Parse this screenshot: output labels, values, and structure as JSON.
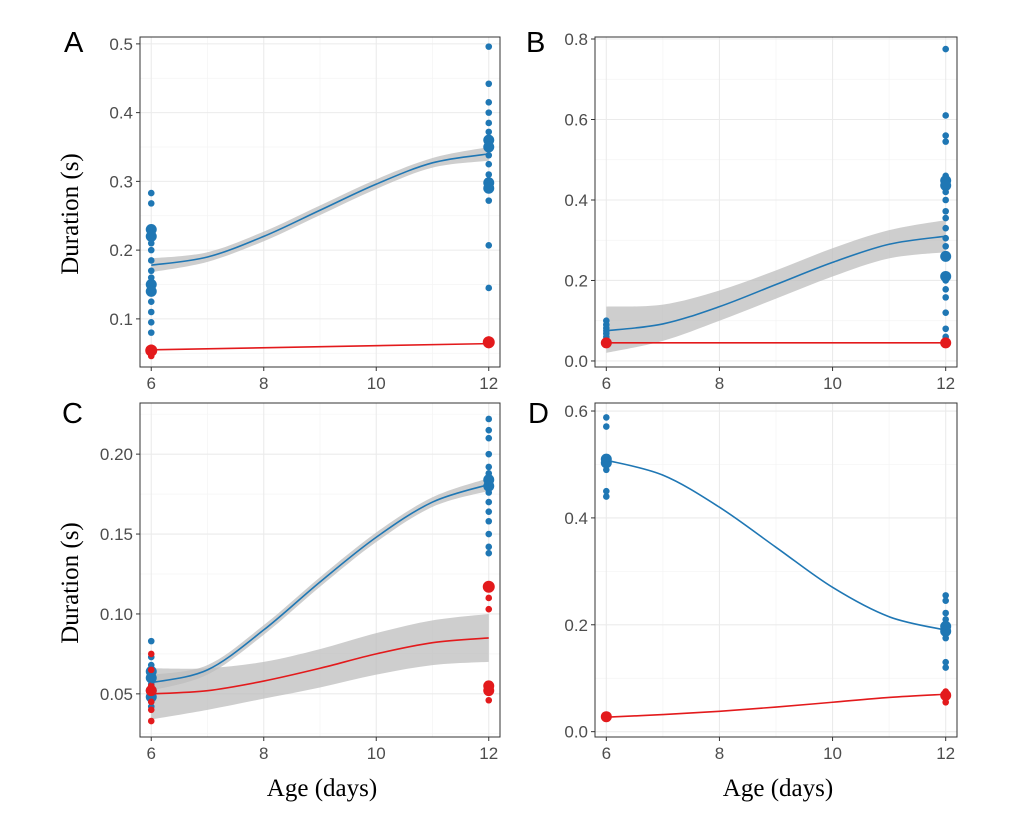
{
  "figure": {
    "y_axis_title": "Duration (s)",
    "x_axis_title": "Age (days)"
  },
  "colors": {
    "series_a": "#1f77b4",
    "series_b": "#e31a1c",
    "ribbon": "#bdbdbd"
  },
  "chart_data": [
    {
      "type": "scatter",
      "label": "A",
      "xlim": [
        5.8,
        12.2
      ],
      "ylim": [
        0.03,
        0.51
      ],
      "x_ticks": [
        6,
        8,
        10,
        12
      ],
      "y_ticks": [
        0.1,
        0.2,
        0.3,
        0.4,
        0.5
      ],
      "y_tick_labels": [
        "0.1",
        "0.2",
        "0.3",
        "0.4",
        "0.5"
      ],
      "grid": true,
      "series": [
        {
          "color": "#1f77b4",
          "points": [
            {
              "x": 6,
              "y": 0.283
            },
            {
              "x": 6,
              "y": 0.268
            },
            {
              "x": 6,
              "y": 0.23,
              "r": 5.5
            },
            {
              "x": 6,
              "y": 0.22,
              "r": 5.5
            },
            {
              "x": 6,
              "y": 0.21
            },
            {
              "x": 6,
              "y": 0.2
            },
            {
              "x": 6,
              "y": 0.185
            },
            {
              "x": 6,
              "y": 0.17
            },
            {
              "x": 6,
              "y": 0.16
            },
            {
              "x": 6,
              "y": 0.15,
              "r": 5.5
            },
            {
              "x": 6,
              "y": 0.14,
              "r": 5.5
            },
            {
              "x": 6,
              "y": 0.125
            },
            {
              "x": 6,
              "y": 0.11
            },
            {
              "x": 6,
              "y": 0.095
            },
            {
              "x": 6,
              "y": 0.08
            },
            {
              "x": 12,
              "y": 0.496
            },
            {
              "x": 12,
              "y": 0.442
            },
            {
              "x": 12,
              "y": 0.415
            },
            {
              "x": 12,
              "y": 0.4
            },
            {
              "x": 12,
              "y": 0.385
            },
            {
              "x": 12,
              "y": 0.372
            },
            {
              "x": 12,
              "y": 0.36,
              "r": 5.5
            },
            {
              "x": 12,
              "y": 0.35,
              "r": 5.5
            },
            {
              "x": 12,
              "y": 0.338
            },
            {
              "x": 12,
              "y": 0.325
            },
            {
              "x": 12,
              "y": 0.31
            },
            {
              "x": 12,
              "y": 0.298,
              "r": 5.5
            },
            {
              "x": 12,
              "y": 0.29,
              "r": 5.5
            },
            {
              "x": 12,
              "y": 0.272
            },
            {
              "x": 12,
              "y": 0.207
            },
            {
              "x": 12,
              "y": 0.145
            }
          ],
          "fit": {
            "x": [
              6,
              7,
              8,
              9,
              10,
              11,
              12
            ],
            "y": [
              0.178,
              0.19,
              0.22,
              0.258,
              0.296,
              0.327,
              0.34
            ]
          },
          "ribbon": {
            "lower": [
              0.168,
              0.183,
              0.213,
              0.251,
              0.289,
              0.32,
              0.33
            ],
            "upper": [
              0.188,
              0.197,
              0.227,
              0.265,
              0.303,
              0.334,
              0.35
            ]
          }
        },
        {
          "color": "#e31a1c",
          "points": [
            {
              "x": 6,
              "y": 0.058
            },
            {
              "x": 6,
              "y": 0.054,
              "r": 6
            },
            {
              "x": 6,
              "y": 0.05
            },
            {
              "x": 6,
              "y": 0.046
            },
            {
              "x": 12,
              "y": 0.07
            },
            {
              "x": 12,
              "y": 0.066,
              "r": 6
            },
            {
              "x": 12,
              "y": 0.062
            }
          ],
          "fit": {
            "x": [
              6,
              12
            ],
            "y": [
              0.055,
              0.064
            ]
          }
        }
      ]
    },
    {
      "type": "scatter",
      "label": "B",
      "xlim": [
        5.8,
        12.2
      ],
      "ylim": [
        -0.015,
        0.805
      ],
      "x_ticks": [
        6,
        8,
        10,
        12
      ],
      "y_ticks": [
        0.0,
        0.2,
        0.4,
        0.6,
        0.8
      ],
      "y_tick_labels": [
        "0.0",
        "0.2",
        "0.4",
        "0.6",
        "0.8"
      ],
      "grid": true,
      "series": [
        {
          "color": "#1f77b4",
          "points": [
            {
              "x": 6,
              "y": 0.1
            },
            {
              "x": 6,
              "y": 0.09
            },
            {
              "x": 6,
              "y": 0.082
            },
            {
              "x": 6,
              "y": 0.075
            },
            {
              "x": 6,
              "y": 0.068
            },
            {
              "x": 6,
              "y": 0.06
            },
            {
              "x": 12,
              "y": 0.775
            },
            {
              "x": 12,
              "y": 0.61
            },
            {
              "x": 12,
              "y": 0.56
            },
            {
              "x": 12,
              "y": 0.545
            },
            {
              "x": 12,
              "y": 0.46
            },
            {
              "x": 12,
              "y": 0.448,
              "r": 5.5
            },
            {
              "x": 12,
              "y": 0.436,
              "r": 5.5
            },
            {
              "x": 12,
              "y": 0.42
            },
            {
              "x": 12,
              "y": 0.4
            },
            {
              "x": 12,
              "y": 0.372
            },
            {
              "x": 12,
              "y": 0.355
            },
            {
              "x": 12,
              "y": 0.33
            },
            {
              "x": 12,
              "y": 0.305
            },
            {
              "x": 12,
              "y": 0.285
            },
            {
              "x": 12,
              "y": 0.26,
              "r": 5.5
            },
            {
              "x": 12,
              "y": 0.21,
              "r": 5.5
            },
            {
              "x": 12,
              "y": 0.2
            },
            {
              "x": 12,
              "y": 0.178
            },
            {
              "x": 12,
              "y": 0.158
            },
            {
              "x": 12,
              "y": 0.12
            },
            {
              "x": 12,
              "y": 0.08
            },
            {
              "x": 12,
              "y": 0.06
            }
          ],
          "fit": {
            "x": [
              6,
              7,
              8,
              9,
              10,
              11,
              12
            ],
            "y": [
              0.075,
              0.092,
              0.135,
              0.19,
              0.245,
              0.29,
              0.31
            ]
          },
          "ribbon": {
            "lower": [
              0.02,
              0.05,
              0.1,
              0.155,
              0.21,
              0.255,
              0.27
            ],
            "upper": [
              0.135,
              0.14,
              0.175,
              0.225,
              0.28,
              0.325,
              0.35
            ]
          }
        },
        {
          "color": "#e31a1c",
          "points": [
            {
              "x": 6,
              "y": 0.045,
              "r": 5.5
            },
            {
              "x": 12,
              "y": 0.045,
              "r": 5.5
            }
          ],
          "fit": {
            "x": [
              6,
              12
            ],
            "y": [
              0.045,
              0.045
            ]
          }
        }
      ]
    },
    {
      "type": "scatter",
      "label": "C",
      "xlim": [
        5.8,
        12.2
      ],
      "ylim": [
        0.023,
        0.232
      ],
      "x_ticks": [
        6,
        8,
        10,
        12
      ],
      "y_ticks": [
        0.05,
        0.1,
        0.15,
        0.2
      ],
      "y_tick_labels": [
        "0.05",
        "0.10",
        "0.15",
        "0.20"
      ],
      "grid": true,
      "series": [
        {
          "color": "#1f77b4",
          "points": [
            {
              "x": 6,
              "y": 0.083
            },
            {
              "x": 6,
              "y": 0.073
            },
            {
              "x": 6,
              "y": 0.068
            },
            {
              "x": 6,
              "y": 0.064,
              "r": 5.5
            },
            {
              "x": 6,
              "y": 0.06,
              "r": 5.5
            },
            {
              "x": 6,
              "y": 0.056
            },
            {
              "x": 6,
              "y": 0.052,
              "r": 5.5
            },
            {
              "x": 6,
              "y": 0.048,
              "r": 5.5
            },
            {
              "x": 6,
              "y": 0.045
            },
            {
              "x": 6,
              "y": 0.042
            },
            {
              "x": 12,
              "y": 0.222
            },
            {
              "x": 12,
              "y": 0.215
            },
            {
              "x": 12,
              "y": 0.21
            },
            {
              "x": 12,
              "y": 0.2
            },
            {
              "x": 12,
              "y": 0.192
            },
            {
              "x": 12,
              "y": 0.188
            },
            {
              "x": 12,
              "y": 0.184,
              "r": 5.5
            },
            {
              "x": 12,
              "y": 0.18,
              "r": 5.5
            },
            {
              "x": 12,
              "y": 0.176
            },
            {
              "x": 12,
              "y": 0.17
            },
            {
              "x": 12,
              "y": 0.164
            },
            {
              "x": 12,
              "y": 0.158
            },
            {
              "x": 12,
              "y": 0.15
            },
            {
              "x": 12,
              "y": 0.142
            },
            {
              "x": 12,
              "y": 0.138
            }
          ],
          "fit": {
            "x": [
              6,
              7,
              8,
              9,
              10,
              11,
              12
            ],
            "y": [
              0.057,
              0.065,
              0.09,
              0.12,
              0.148,
              0.17,
              0.181
            ]
          },
          "ribbon": {
            "lower": [
              0.052,
              0.062,
              0.087,
              0.117,
              0.145,
              0.167,
              0.177
            ],
            "upper": [
              0.062,
              0.068,
              0.093,
              0.123,
              0.151,
              0.173,
              0.185
            ]
          }
        },
        {
          "color": "#e31a1c",
          "points": [
            {
              "x": 6,
              "y": 0.075
            },
            {
              "x": 6,
              "y": 0.065
            },
            {
              "x": 6,
              "y": 0.055
            },
            {
              "x": 6,
              "y": 0.052,
              "r": 5.5
            },
            {
              "x": 6,
              "y": 0.045
            },
            {
              "x": 6,
              "y": 0.04
            },
            {
              "x": 6,
              "y": 0.033
            },
            {
              "x": 12,
              "y": 0.117,
              "r": 6
            },
            {
              "x": 12,
              "y": 0.11
            },
            {
              "x": 12,
              "y": 0.103
            },
            {
              "x": 12,
              "y": 0.055,
              "r": 5.5
            },
            {
              "x": 12,
              "y": 0.052,
              "r": 5.5
            },
            {
              "x": 12,
              "y": 0.046
            }
          ],
          "fit": {
            "x": [
              6,
              7,
              8,
              9,
              10,
              11,
              12
            ],
            "y": [
              0.05,
              0.052,
              0.058,
              0.066,
              0.075,
              0.082,
              0.085
            ]
          },
          "ribbon": {
            "lower": [
              0.034,
              0.04,
              0.047,
              0.054,
              0.062,
              0.068,
              0.07
            ],
            "upper": [
              0.066,
              0.066,
              0.07,
              0.078,
              0.088,
              0.096,
              0.1
            ]
          }
        }
      ]
    },
    {
      "type": "scatter",
      "label": "D",
      "xlim": [
        5.8,
        12.2
      ],
      "ylim": [
        -0.01,
        0.615
      ],
      "x_ticks": [
        6,
        8,
        10,
        12
      ],
      "y_ticks": [
        0.0,
        0.2,
        0.4,
        0.6
      ],
      "y_tick_labels": [
        "0.0",
        "0.2",
        "0.4",
        "0.6"
      ],
      "grid": true,
      "series": [
        {
          "color": "#1f77b4",
          "points": [
            {
              "x": 6,
              "y": 0.588
            },
            {
              "x": 6,
              "y": 0.571
            },
            {
              "x": 6,
              "y": 0.51,
              "r": 5.5
            },
            {
              "x": 6,
              "y": 0.503,
              "r": 5.5
            },
            {
              "x": 6,
              "y": 0.49
            },
            {
              "x": 6,
              "y": 0.45
            },
            {
              "x": 6,
              "y": 0.44
            },
            {
              "x": 12,
              "y": 0.255
            },
            {
              "x": 12,
              "y": 0.245
            },
            {
              "x": 12,
              "y": 0.222
            },
            {
              "x": 12,
              "y": 0.21
            },
            {
              "x": 12,
              "y": 0.197,
              "r": 5.5
            },
            {
              "x": 12,
              "y": 0.188,
              "r": 5.5
            },
            {
              "x": 12,
              "y": 0.175
            },
            {
              "x": 12,
              "y": 0.13
            },
            {
              "x": 12,
              "y": 0.12
            }
          ],
          "fit": {
            "x": [
              6,
              7,
              8,
              9,
              10,
              11,
              12
            ],
            "y": [
              0.508,
              0.48,
              0.42,
              0.345,
              0.27,
              0.215,
              0.19
            ]
          }
        },
        {
          "color": "#e31a1c",
          "points": [
            {
              "x": 6,
              "y": 0.028,
              "r": 5.5
            },
            {
              "x": 12,
              "y": 0.075
            },
            {
              "x": 12,
              "y": 0.068,
              "r": 5.5
            },
            {
              "x": 12,
              "y": 0.062
            },
            {
              "x": 12,
              "y": 0.055
            }
          ],
          "fit": {
            "x": [
              6,
              7,
              8,
              9,
              10,
              11,
              12
            ],
            "y": [
              0.027,
              0.032,
              0.038,
              0.046,
              0.055,
              0.064,
              0.07
            ]
          }
        }
      ]
    }
  ]
}
